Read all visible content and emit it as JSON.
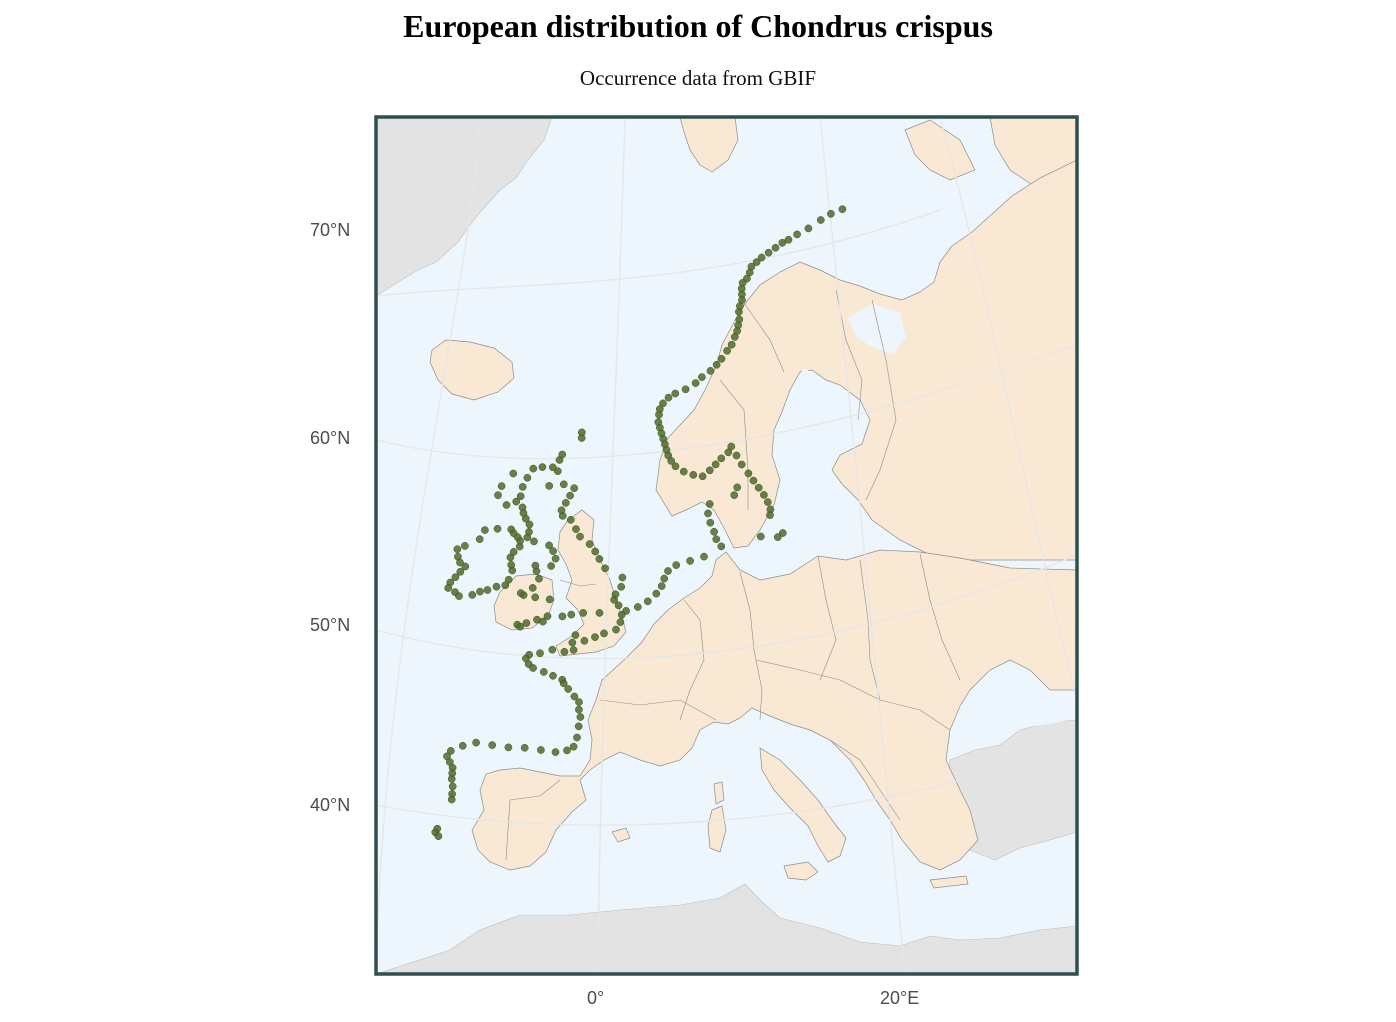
{
  "title": "European distribution of Chondrus crispus",
  "subtitle": "Occurrence data from GBIF",
  "axes": {
    "lat_ticks": [
      "70°N",
      "60°N",
      "50°N",
      "40°N"
    ],
    "lon_ticks": [
      "0°",
      "20°E"
    ]
  },
  "colors": {
    "sea": "#eef6fd",
    "land": "#f9e8d4",
    "land_outside": "#e3e3e3",
    "border": "#8c8c8c",
    "frame": "#2f4f4f",
    "graticule": "#e6e6e6",
    "occurrence": "#4f6b2a"
  },
  "map_data": {
    "type": "occurrence-map",
    "species": "Chondrus crispus",
    "lat_range": [
      34,
      74
    ],
    "lon_range": [
      -13,
      31
    ],
    "occurrences": [
      [
        71.0,
        25.8
      ],
      [
        70.9,
        24.5
      ],
      [
        70.7,
        23.3
      ],
      [
        70.4,
        21.8
      ],
      [
        70.2,
        20.5
      ],
      [
        70.0,
        19.5
      ],
      [
        69.9,
        18.8
      ],
      [
        69.7,
        18.0
      ],
      [
        69.5,
        17.2
      ],
      [
        69.3,
        16.4
      ],
      [
        69.1,
        15.8
      ],
      [
        68.9,
        15.2
      ],
      [
        68.6,
        14.9
      ],
      [
        68.3,
        14.5
      ],
      [
        68.1,
        14.0
      ],
      [
        67.8,
        13.8
      ],
      [
        67.5,
        13.7
      ],
      [
        67.2,
        13.6
      ],
      [
        66.9,
        13.3
      ],
      [
        66.6,
        13.1
      ],
      [
        66.2,
        13.0
      ],
      [
        65.9,
        12.8
      ],
      [
        65.6,
        12.6
      ],
      [
        65.3,
        12.3
      ],
      [
        64.9,
        11.9
      ],
      [
        64.6,
        11.4
      ],
      [
        64.2,
        10.8
      ],
      [
        63.9,
        10.3
      ],
      [
        63.6,
        9.7
      ],
      [
        63.3,
        8.9
      ],
      [
        63.0,
        8.3
      ],
      [
        62.7,
        7.4
      ],
      [
        62.5,
        6.5
      ],
      [
        62.3,
        5.9
      ],
      [
        62.0,
        5.4
      ],
      [
        61.7,
        5.1
      ],
      [
        61.4,
        5.0
      ],
      [
        61.0,
        4.9
      ],
      [
        60.7,
        5.0
      ],
      [
        60.4,
        5.1
      ],
      [
        60.1,
        5.2
      ],
      [
        59.8,
        5.3
      ],
      [
        59.5,
        5.4
      ],
      [
        59.2,
        5.5
      ],
      [
        58.9,
        5.7
      ],
      [
        58.6,
        6.0
      ],
      [
        58.3,
        6.6
      ],
      [
        58.1,
        7.3
      ],
      [
        58.0,
        8.0
      ],
      [
        58.3,
        8.6
      ],
      [
        58.6,
        9.1
      ],
      [
        58.9,
        9.6
      ],
      [
        59.2,
        10.2
      ],
      [
        59.5,
        10.5
      ],
      [
        59.0,
        10.8
      ],
      [
        58.5,
        11.1
      ],
      [
        58.0,
        11.5
      ],
      [
        57.6,
        11.8
      ],
      [
        57.2,
        12.1
      ],
      [
        56.8,
        12.4
      ],
      [
        56.4,
        12.6
      ],
      [
        56.0,
        12.7
      ],
      [
        55.7,
        12.6
      ],
      [
        57.3,
        10.5
      ],
      [
        56.9,
        10.2
      ],
      [
        56.5,
        8.3
      ],
      [
        56.0,
        8.1
      ],
      [
        55.5,
        8.2
      ],
      [
        55.0,
        8.4
      ],
      [
        54.6,
        8.5
      ],
      [
        54.2,
        8.8
      ],
      [
        53.7,
        7.5
      ],
      [
        53.5,
        6.5
      ],
      [
        53.3,
        5.5
      ],
      [
        53.0,
        4.9
      ],
      [
        52.6,
        4.6
      ],
      [
        52.2,
        4.4
      ],
      [
        51.8,
        4.0
      ],
      [
        51.4,
        3.4
      ],
      [
        51.1,
        2.7
      ],
      [
        50.9,
        1.9
      ],
      [
        50.7,
        1.6
      ],
      [
        50.3,
        1.5
      ],
      [
        49.9,
        1.2
      ],
      [
        49.7,
        0.4
      ],
      [
        49.5,
        -0.2
      ],
      [
        49.3,
        -0.9
      ],
      [
        49.6,
        -1.5
      ],
      [
        49.2,
        -1.7
      ],
      [
        48.8,
        -1.6
      ],
      [
        48.7,
        -2.2
      ],
      [
        48.8,
        -3.0
      ],
      [
        48.6,
        -3.8
      ],
      [
        48.5,
        -4.5
      ],
      [
        48.3,
        -4.7
      ],
      [
        48.0,
        -4.5
      ],
      [
        47.8,
        -4.2
      ],
      [
        47.6,
        -3.5
      ],
      [
        47.4,
        -2.9
      ],
      [
        47.2,
        -2.3
      ],
      [
        47.0,
        -2.2
      ],
      [
        46.7,
        -1.9
      ],
      [
        46.3,
        -1.5
      ],
      [
        46.0,
        -1.2
      ],
      [
        45.6,
        -1.2
      ],
      [
        45.2,
        -1.1
      ],
      [
        44.7,
        -1.2
      ],
      [
        44.1,
        -1.3
      ],
      [
        43.6,
        -1.5
      ],
      [
        43.4,
        -1.9
      ],
      [
        43.3,
        -2.6
      ],
      [
        43.4,
        -3.5
      ],
      [
        43.5,
        -4.5
      ],
      [
        43.5,
        -5.5
      ],
      [
        43.6,
        -6.5
      ],
      [
        43.7,
        -7.5
      ],
      [
        43.5,
        -8.3
      ],
      [
        43.2,
        -9.0
      ],
      [
        42.9,
        -9.2
      ],
      [
        42.6,
        -9.0
      ],
      [
        42.3,
        -8.8
      ],
      [
        42.0,
        -8.8
      ],
      [
        41.7,
        -8.8
      ],
      [
        41.3,
        -8.7
      ],
      [
        40.9,
        -8.7
      ],
      [
        40.6,
        -8.7
      ],
      [
        39.0,
        -9.4
      ],
      [
        38.8,
        -9.5
      ],
      [
        38.6,
        -9.3
      ],
      [
        51.5,
        -3.3
      ],
      [
        51.6,
        -4.3
      ],
      [
        51.7,
        -5.1
      ],
      [
        51.8,
        -5.3
      ],
      [
        52.1,
        -4.5
      ],
      [
        52.6,
        -4.1
      ],
      [
        53.0,
        -4.3
      ],
      [
        53.3,
        -4.4
      ],
      [
        53.3,
        -3.3
      ],
      [
        50.1,
        -5.4
      ],
      [
        50.0,
        -5.2
      ],
      [
        50.2,
        -4.8
      ],
      [
        50.4,
        -4.1
      ],
      [
        50.3,
        -3.7
      ],
      [
        50.6,
        -3.4
      ],
      [
        50.6,
        -2.4
      ],
      [
        50.7,
        -1.8
      ],
      [
        50.8,
        -1.0
      ],
      [
        50.8,
        0.1
      ],
      [
        51.2,
        1.4
      ],
      [
        51.5,
        1.1
      ],
      [
        51.8,
        1.2
      ],
      [
        52.2,
        1.6
      ],
      [
        52.7,
        1.7
      ],
      [
        53.2,
        0.5
      ],
      [
        53.7,
        0.1
      ],
      [
        54.1,
        -0.2
      ],
      [
        54.5,
        -0.6
      ],
      [
        54.9,
        -1.3
      ],
      [
        55.3,
        -1.6
      ],
      [
        55.8,
        -2.0
      ],
      [
        56.0,
        -2.6
      ],
      [
        56.3,
        -2.7
      ],
      [
        56.7,
        -2.4
      ],
      [
        57.1,
        -2.1
      ],
      [
        57.5,
        -1.8
      ],
      [
        57.7,
        -2.6
      ],
      [
        57.6,
        -3.7
      ],
      [
        58.4,
        -3.1
      ],
      [
        58.6,
        -3.5
      ],
      [
        58.6,
        -4.3
      ],
      [
        58.5,
        -5.0
      ],
      [
        58.0,
        -5.4
      ],
      [
        57.5,
        -5.7
      ],
      [
        57.0,
        -5.8
      ],
      [
        56.7,
        -6.1
      ],
      [
        56.4,
        -5.6
      ],
      [
        56.1,
        -5.5
      ],
      [
        55.8,
        -5.3
      ],
      [
        55.5,
        -5.0
      ],
      [
        55.1,
        -5.0
      ],
      [
        54.8,
        -5.1
      ],
      [
        54.6,
        -4.6
      ],
      [
        54.4,
        -3.5
      ],
      [
        54.1,
        -3.2
      ],
      [
        53.7,
        -3.0
      ],
      [
        59.0,
        -3.0
      ],
      [
        59.3,
        -2.8
      ],
      [
        60.2,
        -1.3
      ],
      [
        60.5,
        -1.3
      ],
      [
        58.2,
        -6.5
      ],
      [
        57.5,
        -7.3
      ],
      [
        57.0,
        -7.5
      ],
      [
        56.5,
        -6.8
      ],
      [
        55.2,
        -6.3
      ],
      [
        55.2,
        -7.3
      ],
      [
        55.1,
        -8.2
      ],
      [
        54.6,
        -8.5
      ],
      [
        54.2,
        -9.5
      ],
      [
        54.0,
        -10.0
      ],
      [
        53.6,
        -9.9
      ],
      [
        53.3,
        -9.7
      ],
      [
        53.1,
        -9.3
      ],
      [
        52.8,
        -9.6
      ],
      [
        52.5,
        -9.9
      ],
      [
        52.2,
        -10.2
      ],
      [
        51.9,
        -10.3
      ],
      [
        51.7,
        -9.8
      ],
      [
        51.5,
        -9.5
      ],
      [
        51.6,
        -8.6
      ],
      [
        51.8,
        -8.1
      ],
      [
        51.9,
        -7.6
      ],
      [
        52.1,
        -7.0
      ],
      [
        52.2,
        -6.4
      ],
      [
        52.5,
        -6.2
      ],
      [
        53.0,
        -6.0
      ],
      [
        53.3,
        -6.1
      ],
      [
        53.7,
        -6.2
      ],
      [
        54.0,
        -6.0
      ],
      [
        54.3,
        -5.6
      ],
      [
        54.6,
        -5.6
      ],
      [
        54.8,
        -5.8
      ],
      [
        55.0,
        -6.1
      ],
      [
        54.6,
        11.7
      ],
      [
        54.5,
        12.9
      ],
      [
        54.7,
        13.3
      ]
    ]
  }
}
